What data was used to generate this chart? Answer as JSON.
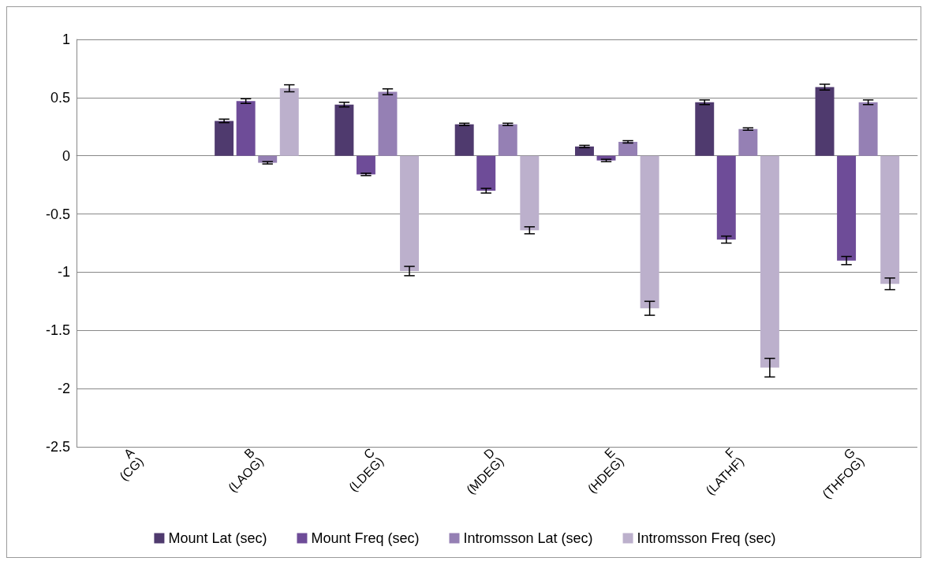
{
  "chart_data": {
    "type": "bar",
    "categories": [
      "A (CG)",
      "B (LAOG)",
      "C (LDEG)",
      "D (MDEG)",
      "E (HDEG)",
      "F (LATHF)",
      "G (THFOG)"
    ],
    "series": [
      {
        "name": "Mount Lat (sec)",
        "color": "#4f3a6e",
        "values": [
          null,
          0.3,
          0.44,
          0.27,
          0.08,
          0.46,
          0.59
        ],
        "errors": [
          null,
          0.015,
          0.02,
          0.01,
          0.01,
          0.02,
          0.025
        ]
      },
      {
        "name": "Mount Freq (sec)",
        "color": "#6e4c98",
        "values": [
          null,
          0.47,
          -0.16,
          -0.3,
          -0.04,
          -0.72,
          -0.9
        ],
        "errors": [
          null,
          0.02,
          0.01,
          0.02,
          0.01,
          0.03,
          0.035
        ]
      },
      {
        "name": "Intromsson Lat (sec)",
        "color": "#9580b4",
        "values": [
          null,
          -0.06,
          0.55,
          0.27,
          0.12,
          0.23,
          0.46
        ],
        "errors": [
          null,
          0.01,
          0.025,
          0.01,
          0.01,
          0.01,
          0.02
        ]
      },
      {
        "name": "Intromsson Freq (sec)",
        "color": "#bcb0cc",
        "values": [
          null,
          0.58,
          -0.99,
          -0.64,
          -1.31,
          -1.82,
          -1.1
        ],
        "errors": [
          null,
          0.03,
          0.04,
          0.03,
          0.06,
          0.08,
          0.05
        ]
      }
    ],
    "ylim": [
      -2.5,
      1
    ],
    "yticks": [
      -2.5,
      -2,
      -1.5,
      -1,
      -0.5,
      0,
      0.5,
      1
    ],
    "grid": "y",
    "legend": "bottom"
  }
}
